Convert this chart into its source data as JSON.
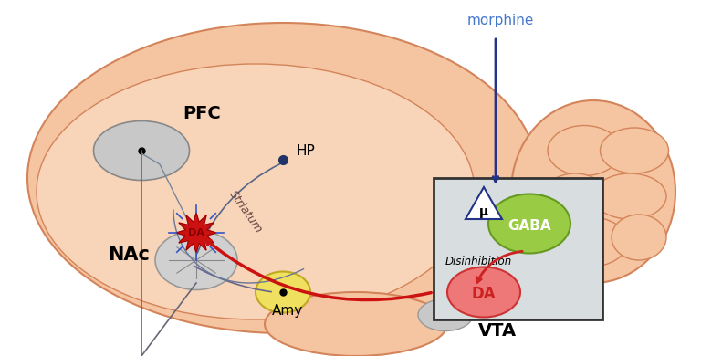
{
  "bg_color": "#fde8da",
  "brain_outline_color": "#e8a882",
  "brain_fill_color": "#f5c9aa",
  "morphine_text": "morphine",
  "morphine_color": "#2255aa",
  "morphine_text_color": "#4477cc",
  "vta_box_color": "#d8dde0",
  "vta_label": "VTA",
  "nac_label": "NAc",
  "pfc_label": "PFC",
  "hp_label": "HP",
  "amy_label": "Amy",
  "striatum_label": "Striatum",
  "gaba_color": "#88cc44",
  "da_vta_color": "#ee6666",
  "da_nac_color": "#cc2222",
  "mu_color": "#ffffff",
  "mu_border_color": "#334488",
  "disinhibition_label": "Disinhibition",
  "gaba_label": "GABA",
  "da_label": "DA",
  "mu_label": "μ"
}
